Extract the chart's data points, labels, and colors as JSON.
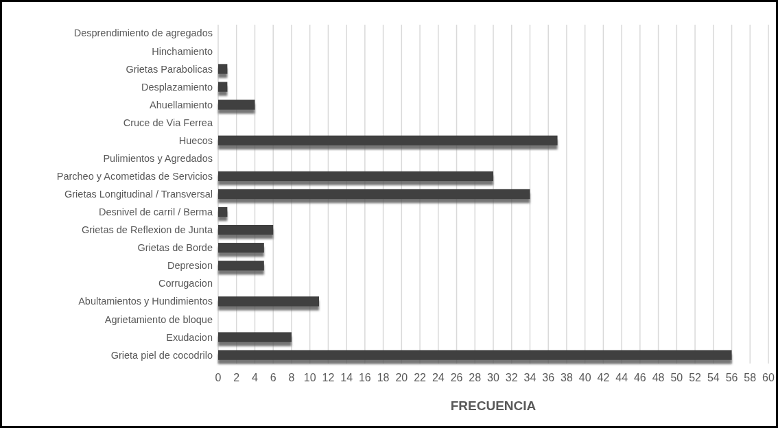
{
  "chart_data": {
    "type": "bar",
    "orientation": "horizontal",
    "xlabel": "FRECUENCIA",
    "categories": [
      "Desprendimiento de agregados",
      "Hinchamiento",
      "Grietas Parabolicas",
      "Desplazamiento",
      "Ahuellamiento",
      "Cruce de Via Ferrea",
      "Huecos",
      "Pulimientos y Agredados",
      "Parcheo y Acometidas de Servicios",
      "Grietas Longitudinal / Transversal",
      "Desnivel de carril / Berma",
      "Grietas de Reflexion de Junta",
      "Grietas de Borde",
      "Depresion",
      "Corrugacion",
      "Abultamientos y Hundimientos",
      "Agrietamiento de bloque",
      "Exudacion",
      "Grieta piel de cocodrilo"
    ],
    "values": [
      0,
      0,
      1,
      1,
      4,
      0,
      37,
      0,
      30,
      34,
      1,
      6,
      5,
      5,
      0,
      11,
      0,
      8,
      56
    ],
    "color": "#404040",
    "xlim": [
      0,
      60
    ],
    "xticks": [
      0,
      2,
      4,
      6,
      8,
      10,
      12,
      14,
      16,
      18,
      20,
      22,
      24,
      26,
      28,
      30,
      32,
      34,
      36,
      38,
      40,
      42,
      44,
      46,
      48,
      50,
      52,
      54,
      56,
      58,
      60
    ],
    "grid": "x"
  }
}
